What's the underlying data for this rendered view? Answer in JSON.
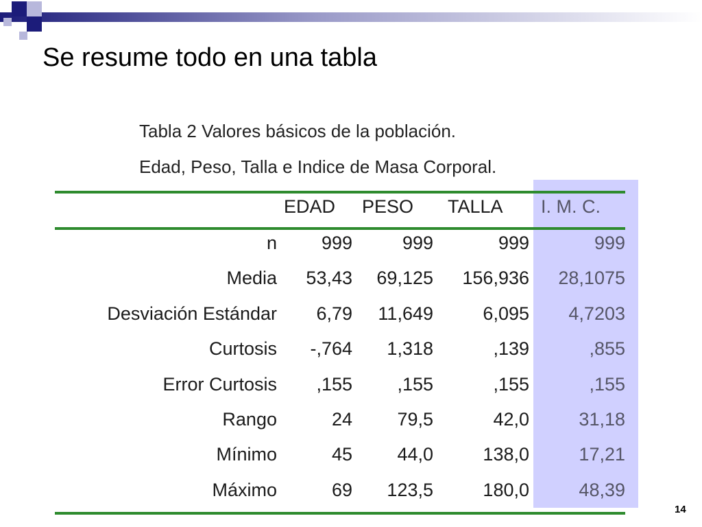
{
  "colors": {
    "header_gradient_start": "#1c1c7a",
    "header_gradient_mid": "#9a9ac8",
    "header_gradient_end": "#ffffff",
    "deco_square_dark": "#1c1c7a",
    "deco_square_light": "#b8b8dc",
    "table_rule": "#2e8b2e",
    "imc_highlight": "#d0d0ff"
  },
  "slide": {
    "title": "Se resume todo en una tabla",
    "page_number": "14"
  },
  "table": {
    "caption_line1": "Tabla 2 Valores básicos de la población.",
    "caption_line2": "Edad, Peso, Talla e Indice de Masa Corporal.",
    "headers": [
      "EDAD",
      "PESO",
      "TALLA",
      "I. M. C."
    ],
    "rows": [
      {
        "label": "n",
        "values": [
          "999",
          "999",
          "999",
          "999"
        ]
      },
      {
        "label": "Media",
        "values": [
          "53,43",
          "69,125",
          "156,936",
          "28,1075"
        ]
      },
      {
        "label": "Desviación Estándar",
        "values": [
          "6,79",
          "11,649",
          "6,095",
          "4,7203"
        ]
      },
      {
        "label": "Curtosis",
        "values": [
          "-,764",
          "1,318",
          ",139",
          ",855"
        ]
      },
      {
        "label": "Error Curtosis",
        "values": [
          ",155",
          ",155",
          ",155",
          ",155"
        ]
      },
      {
        "label": "Rango",
        "values": [
          "24",
          "79,5",
          "42,0",
          "31,18"
        ]
      },
      {
        "label": "Mínimo",
        "values": [
          "45",
          "44,0",
          "138,0",
          "17,21"
        ]
      },
      {
        "label": "Máximo",
        "values": [
          "69",
          "123,5",
          "180,0",
          "48,39"
        ]
      }
    ]
  }
}
